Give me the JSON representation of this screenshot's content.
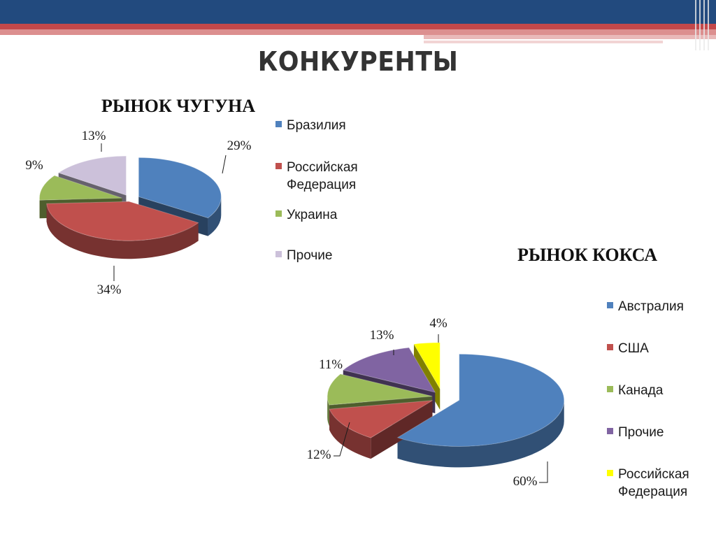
{
  "page": {
    "title": "КОНКУРЕНТЫ"
  },
  "chart_data": [
    {
      "type": "pie",
      "title": "РЫНОК ЧУГУНА",
      "categories": [
        "Бразилия",
        "Российская Федерация",
        "Украина",
        "Прочие"
      ],
      "values": [
        29,
        34,
        9,
        13
      ],
      "labels": [
        "29%",
        "34%",
        "9%",
        "13%"
      ],
      "colors": [
        "#4f81bd",
        "#c0504d",
        "#9bbb59",
        "#ccc1da"
      ],
      "legend": "right"
    },
    {
      "type": "pie",
      "title": "РЫНОК КОКСА",
      "categories": [
        "Австралия",
        "США",
        "Канада",
        "Прочие",
        "Российская Федерация"
      ],
      "values": [
        60,
        12,
        11,
        13,
        4
      ],
      "labels": [
        "60%",
        "12%",
        "11%",
        "13%",
        "4%"
      ],
      "colors": [
        "#4f81bd",
        "#c0504d",
        "#9bbb59",
        "#8064a2",
        "#ffff00"
      ],
      "legend": "right"
    }
  ]
}
